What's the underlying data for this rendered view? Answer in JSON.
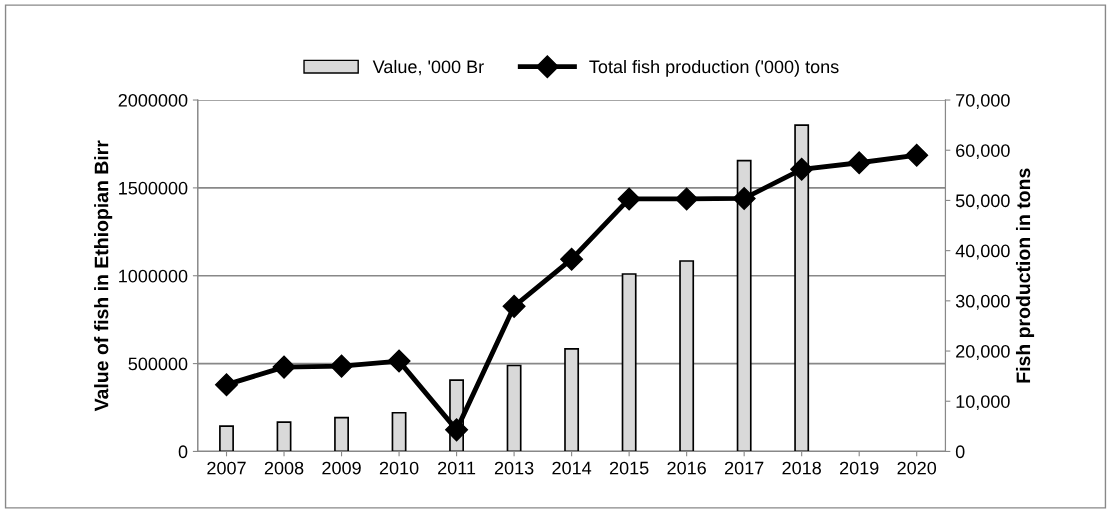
{
  "chart_data": {
    "type": "bar",
    "categories": [
      "2007",
      "2008",
      "2009",
      "2010",
      "2011",
      "2013",
      "2014",
      "2015",
      "2016",
      "2017",
      "2018",
      "2019",
      "2020"
    ],
    "series": [
      {
        "name": "Value, '000 Br",
        "color": "#d9d9d9",
        "values": [
          144000,
          167000,
          192000,
          220000,
          406000,
          489000,
          584000,
          1010000,
          1084000,
          1655000,
          1857000,
          null,
          null
        ]
      },
      {
        "name": "Total fish production ('000) tons",
        "type": "line",
        "axis": "y2",
        "color": "#000000",
        "values": [
          13300,
          16800,
          17000,
          18000,
          4300,
          28900,
          38300,
          50300,
          50300,
          50400,
          56200,
          57500,
          59000
        ]
      }
    ],
    "ylabel": "Value of fish in Ethiopian Birr",
    "y2label": "Fish production in tons",
    "ylim": [
      0,
      2000000
    ],
    "yticks": [
      0,
      500000,
      1000000,
      1500000,
      2000000
    ],
    "y2lim": [
      0,
      70000
    ],
    "y2ticks": [
      0,
      {
        "value": 10000,
        "label": "10,000"
      },
      {
        "value": 20000,
        "label": "20,000"
      },
      {
        "value": 30000,
        "label": "30,000"
      },
      {
        "value": 40000,
        "label": "40,000"
      },
      {
        "value": 50000,
        "label": "50,000"
      },
      {
        "value": 60000,
        "label": "60,000"
      },
      {
        "value": 70000,
        "label": "70,000"
      }
    ],
    "grid": "y",
    "legend": "top",
    "marker": "diamond"
  }
}
